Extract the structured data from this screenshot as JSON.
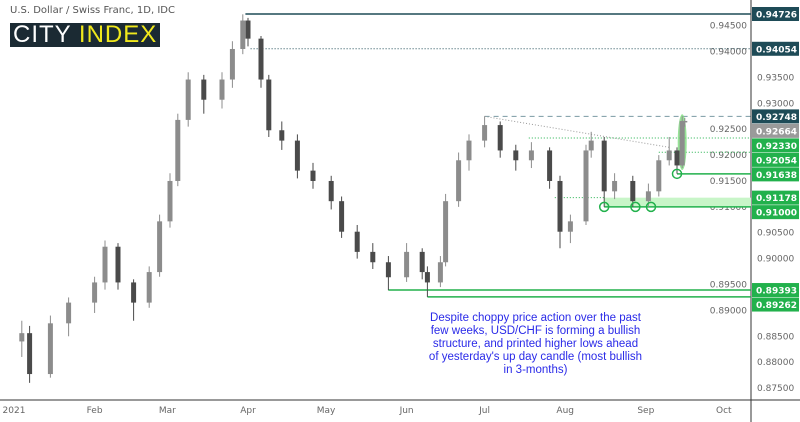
{
  "header": {
    "title": "U.S. Dollar / Swiss Franc, 1D, IDC",
    "logo_left": "CITY",
    "logo_right": "INDEX"
  },
  "colors": {
    "bull": "#8c8c8c",
    "bear": "#4a4a4a",
    "support": "#22b14c",
    "support_light": "#c8f5c8",
    "resistance": "#1e4b57",
    "last": "#9a9a9a",
    "note": "#2a2ae8"
  },
  "annotation": "Despite choppy price action over the past few weeks, USD/CHF is forming a bullish structure, and printed higher lows ahead of yesterday's up day candle (most bullish in 3-months)",
  "chart_data": {
    "type": "candlestick",
    "title": "U.S. Dollar / Swiss Franc, 1D, IDC",
    "ylim": [
      0.8735,
      0.9495
    ],
    "xlim": [
      "2021-01-01",
      "2021-10-10"
    ],
    "grid": false,
    "x_ticks": [
      {
        "label": "2021",
        "date": "2021-01-01"
      },
      {
        "label": "Feb",
        "date": "2021-02-01"
      },
      {
        "label": "Mar",
        "date": "2021-03-01"
      },
      {
        "label": "Apr",
        "date": "2021-04-01"
      },
      {
        "label": "May",
        "date": "2021-05-01"
      },
      {
        "label": "Jun",
        "date": "2021-06-01"
      },
      {
        "label": "Jul",
        "date": "2021-07-01"
      },
      {
        "label": "Aug",
        "date": "2021-08-01"
      },
      {
        "label": "Sep",
        "date": "2021-09-01"
      },
      {
        "label": "Oct",
        "date": "2021-10-01"
      }
    ],
    "y_ticks": [
      "0.94500",
      "0.94000",
      "0.93500",
      "0.93000",
      "0.92500",
      "0.92000",
      "0.91500",
      "0.91000",
      "0.90500",
      "0.90000",
      "0.89500",
      "0.89000",
      "0.88500",
      "0.88000",
      "0.87500"
    ],
    "candles": [
      [
        "2021-01-04",
        0.884,
        0.888,
        0.881,
        0.8856
      ],
      [
        "2021-01-07",
        0.8856,
        0.887,
        0.876,
        0.8777
      ],
      [
        "2021-01-15",
        0.8777,
        0.889,
        0.877,
        0.8875
      ],
      [
        "2021-01-22",
        0.8875,
        0.8925,
        0.885,
        0.8915
      ],
      [
        "2021-02-01",
        0.8915,
        0.8965,
        0.8895,
        0.8954
      ],
      [
        "2021-02-05",
        0.8954,
        0.9035,
        0.894,
        0.9023
      ],
      [
        "2021-02-10",
        0.9023,
        0.903,
        0.894,
        0.8954
      ],
      [
        "2021-02-16",
        0.8954,
        0.896,
        0.888,
        0.8915
      ],
      [
        "2021-02-22",
        0.8915,
        0.8985,
        0.8905,
        0.8974
      ],
      [
        "2021-02-26",
        0.8974,
        0.9085,
        0.8965,
        0.9072
      ],
      [
        "2021-03-02",
        0.9072,
        0.9165,
        0.906,
        0.915
      ],
      [
        "2021-03-05",
        0.915,
        0.928,
        0.914,
        0.9268
      ],
      [
        "2021-03-09",
        0.9268,
        0.936,
        0.9255,
        0.9346
      ],
      [
        "2021-03-15",
        0.9346,
        0.9355,
        0.928,
        0.9307
      ],
      [
        "2021-03-22",
        0.9307,
        0.936,
        0.929,
        0.9346
      ],
      [
        "2021-03-26",
        0.9346,
        0.942,
        0.933,
        0.9405
      ],
      [
        "2021-03-30",
        0.9405,
        0.9472,
        0.9395,
        0.946
      ],
      [
        "2021-04-01",
        0.946,
        0.9465,
        0.941,
        0.9425
      ],
      [
        "2021-04-06",
        0.9425,
        0.943,
        0.933,
        0.9346
      ],
      [
        "2021-04-09",
        0.9346,
        0.9355,
        0.9235,
        0.9248
      ],
      [
        "2021-04-14",
        0.9248,
        0.9265,
        0.921,
        0.9228
      ],
      [
        "2021-04-20",
        0.9228,
        0.924,
        0.9155,
        0.917
      ],
      [
        "2021-04-26",
        0.917,
        0.9185,
        0.9135,
        0.915
      ],
      [
        "2021-05-03",
        0.915,
        0.916,
        0.9095,
        0.9111
      ],
      [
        "2021-05-07",
        0.9111,
        0.912,
        0.904,
        0.9052
      ],
      [
        "2021-05-13",
        0.9052,
        0.9065,
        0.9,
        0.9013
      ],
      [
        "2021-05-19",
        0.9013,
        0.903,
        0.898,
        0.8993
      ],
      [
        "2021-05-25",
        0.8993,
        0.9005,
        0.8939,
        0.8964
      ],
      [
        "2021-06-01",
        0.8964,
        0.903,
        0.8955,
        0.9013
      ],
      [
        "2021-06-07",
        0.9013,
        0.902,
        0.896,
        0.8974
      ],
      [
        "2021-06-09",
        0.8974,
        0.8985,
        0.8926,
        0.8954
      ],
      [
        "2021-06-14",
        0.8954,
        0.9005,
        0.8945,
        0.8993
      ],
      [
        "2021-06-16",
        0.8993,
        0.9125,
        0.8985,
        0.9111
      ],
      [
        "2021-06-21",
        0.9111,
        0.9205,
        0.91,
        0.919
      ],
      [
        "2021-06-25",
        0.919,
        0.924,
        0.917,
        0.9228
      ],
      [
        "2021-07-01",
        0.9228,
        0.9275,
        0.9215,
        0.9258
      ],
      [
        "2021-07-07",
        0.9258,
        0.9265,
        0.9195,
        0.9209
      ],
      [
        "2021-07-13",
        0.9209,
        0.922,
        0.917,
        0.919
      ],
      [
        "2021-07-19",
        0.919,
        0.9225,
        0.9175,
        0.9209
      ],
      [
        "2021-07-26",
        0.9209,
        0.9215,
        0.9135,
        0.915
      ],
      [
        "2021-07-30",
        0.915,
        0.916,
        0.902,
        0.9052
      ],
      [
        "2021-08-03",
        0.9052,
        0.9085,
        0.903,
        0.9072
      ],
      [
        "2021-08-09",
        0.9072,
        0.922,
        0.9065,
        0.9209
      ],
      [
        "2021-08-11",
        0.9209,
        0.9245,
        0.9195,
        0.9228
      ],
      [
        "2021-08-16",
        0.9228,
        0.9235,
        0.91,
        0.913
      ],
      [
        "2021-08-20",
        0.913,
        0.9165,
        0.9115,
        0.915
      ],
      [
        "2021-08-27",
        0.915,
        0.916,
        0.91,
        0.9111
      ],
      [
        "2021-09-02",
        0.9111,
        0.9145,
        0.91,
        0.913
      ],
      [
        "2021-09-06",
        0.913,
        0.92,
        0.912,
        0.919
      ],
      [
        "2021-09-10",
        0.919,
        0.9235,
        0.918,
        0.9209
      ],
      [
        "2021-09-13",
        0.9209,
        0.9215,
        0.9164,
        0.918
      ],
      [
        "2021-09-15",
        0.918,
        0.9275,
        0.9175,
        0.9266
      ],
      [
        "2021-09-16",
        0.9266,
        0.9272,
        0.9255,
        0.9266
      ]
    ],
    "levels": [
      {
        "label": "0.94726",
        "value": 0.94726,
        "from": "2021-03-31",
        "style": "solid",
        "color": "#1e4b57"
      },
      {
        "label": "0.94054",
        "value": 0.94054,
        "from": "2021-04-02",
        "style": "dotted",
        "color": "#1e4b57"
      },
      {
        "label": "0.92748",
        "value": 0.92748,
        "from": "2021-07-01",
        "style": "dashed",
        "color": "#1e4b57"
      },
      {
        "label": "0.92664",
        "value": 0.92664,
        "from": null,
        "style": "last",
        "color": "#9a9a9a"
      },
      {
        "label": "0.92330",
        "value": 0.9233,
        "from": "2021-07-18",
        "style": "dotted",
        "color": "#22b14c"
      },
      {
        "label": "0.92054",
        "value": 0.92054,
        "from": "2021-09-06",
        "style": "dotted",
        "color": "#22b14c"
      },
      {
        "label": "0.91638",
        "value": 0.91638,
        "from": "2021-09-13",
        "style": "solid",
        "color": "#22b14c"
      },
      {
        "label": "0.91178",
        "value": 0.91178,
        "from": "2021-08-16",
        "style": "zone",
        "color": "#22b14c"
      },
      {
        "label": "0.91000",
        "value": 0.91,
        "from": "2021-08-16",
        "style": "zone",
        "color": "#22b14c"
      },
      {
        "label": "0.89393",
        "value": 0.89393,
        "from": "2021-05-25",
        "style": "solid",
        "color": "#22b14c"
      },
      {
        "label": "0.89262",
        "value": 0.89262,
        "from": "2021-06-09",
        "style": "solid",
        "color": "#22b14c"
      }
    ],
    "trendline": {
      "from": [
        "2021-07-01",
        0.92748
      ],
      "to": [
        "2021-09-10",
        0.9215
      ]
    },
    "higher_low_markers": [
      [
        "2021-08-16",
        0.91
      ],
      [
        "2021-08-28",
        0.91
      ],
      [
        "2021-09-03",
        0.91
      ],
      [
        "2021-09-13",
        0.91638
      ]
    ]
  }
}
